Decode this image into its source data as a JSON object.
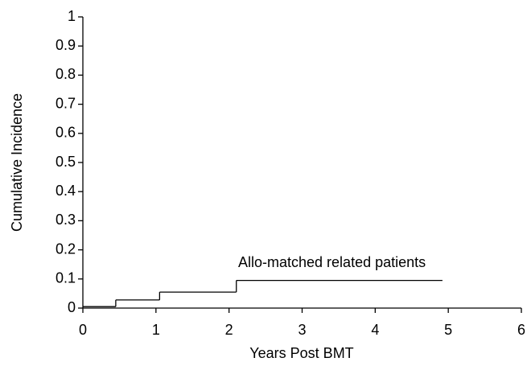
{
  "chart_data": {
    "type": "step",
    "x_label": "Years Post BMT",
    "y_label": "Cumulative Incidence",
    "annotation": "Allo-matched related patients",
    "x": [
      0,
      0.45,
      1.05,
      2.1,
      4.92
    ],
    "values": [
      0.005,
      0.028,
      0.055,
      0.095,
      0.095
    ],
    "color": "#000000",
    "xlim": [
      0,
      6
    ],
    "xticks": [
      0,
      1,
      2,
      3,
      4,
      5,
      6
    ],
    "ylim": [
      0,
      1
    ],
    "yticks": [
      0,
      0.1,
      0.2,
      0.3,
      0.4,
      0.5,
      0.6,
      0.7,
      0.8,
      0.9,
      1
    ],
    "grid": false
  }
}
